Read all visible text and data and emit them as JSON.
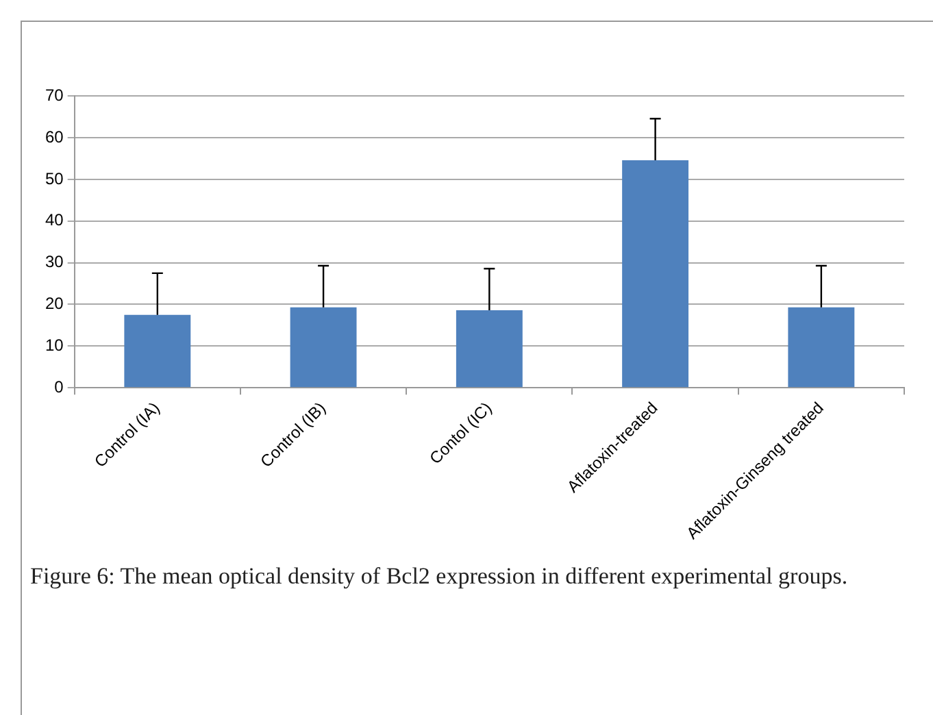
{
  "chart_data": {
    "type": "bar",
    "categories": [
      "Control (IA)",
      "Control (IB)",
      "Contol (IC)",
      "Aflatoxin-treated",
      "Aflatoxin-Ginseng treated"
    ],
    "values": [
      17.5,
      19.3,
      18.6,
      54.6,
      19.3
    ],
    "errors": [
      [
        17.5,
        27.5
      ],
      [
        19.3,
        29.3
      ],
      [
        18.6,
        28.6
      ],
      [
        54.6,
        64.6
      ],
      [
        19.3,
        29.3
      ]
    ],
    "color": "#4f81bd",
    "ylim": [
      0,
      70
    ],
    "yticks": [
      0,
      10,
      20,
      30,
      40,
      50,
      60,
      70
    ],
    "grid": "y",
    "legend": false,
    "annotations": [
      "Figure 6: The mean optical density of Bcl2 expression in different experimental groups."
    ]
  }
}
